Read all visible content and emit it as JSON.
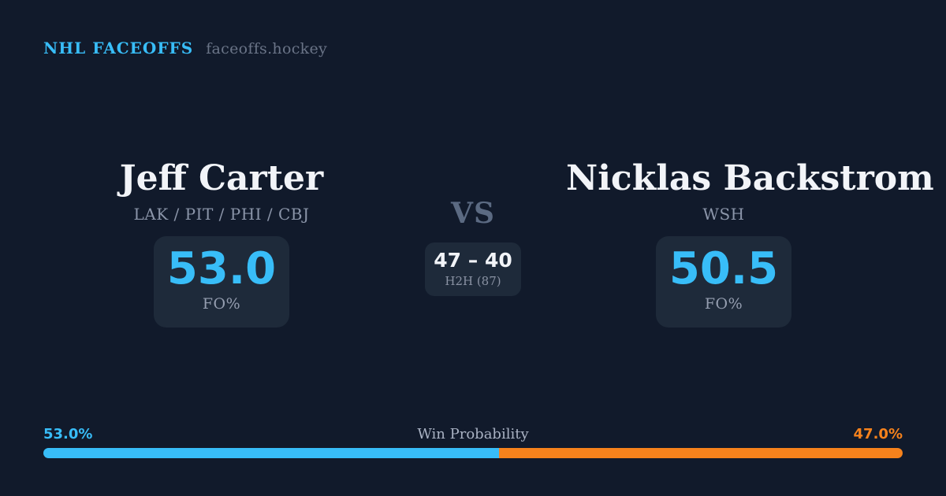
{
  "header": {
    "title": "NHL FACEOFFS",
    "site": "faceoffs.hockey"
  },
  "matchup": {
    "vs_label": "VS",
    "h2h_card": {
      "score": "47 – 40",
      "label": "H2H (87)"
    },
    "player_left": {
      "name": "Jeff Carter",
      "teams": "LAK / PIT / PHI / CBJ",
      "stat_value": "53.0",
      "stat_label": "FO%"
    },
    "player_right": {
      "name": "Nicklas Backstrom",
      "teams": "WSH",
      "stat_value": "50.5",
      "stat_label": "FO%"
    }
  },
  "win_probability": {
    "title": "Win Probability",
    "left_value": "53.0%",
    "right_value": "47.0%",
    "left_percent": 53.0,
    "right_percent": 47.0
  },
  "colors": {
    "background": "#111a2b",
    "card": "#1e2a3a",
    "accent_blue": "#38bdf8",
    "accent_orange": "#f6821c",
    "text_primary": "#f2f4f8",
    "text_muted": "#8b95a9",
    "vs": "#5b6a82"
  }
}
